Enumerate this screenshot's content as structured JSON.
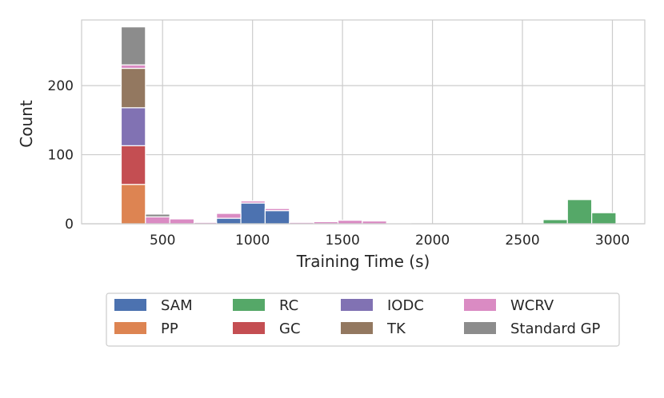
{
  "chart_data": {
    "type": "bar",
    "subtype": "stacked-histogram",
    "xlabel": "Training Time (s)",
    "ylabel": "Count",
    "xlim": [
      50,
      3180
    ],
    "ylim": [
      0,
      295
    ],
    "xticks": [
      500,
      1000,
      1500,
      2000,
      2500,
      3000
    ],
    "yticks": [
      0,
      100,
      200
    ],
    "grid": true,
    "legend_position": "bottom-center",
    "bin_width": 135,
    "series": [
      {
        "name": "SAM",
        "color": "#4c72b0",
        "bins": [
          {
            "x0": 800,
            "x1": 935,
            "y": 8
          },
          {
            "x0": 935,
            "x1": 1070,
            "y": 30
          },
          {
            "x0": 1070,
            "x1": 1205,
            "y": 19
          }
        ]
      },
      {
        "name": "PP",
        "color": "#dd8452",
        "bins": [
          {
            "x0": 270,
            "x1": 405,
            "y": 57
          }
        ]
      },
      {
        "name": "RC",
        "color": "#55a868",
        "bins": [
          {
            "x0": 2615,
            "x1": 2750,
            "y": 6
          },
          {
            "x0": 2750,
            "x1": 2885,
            "y": 35
          },
          {
            "x0": 2885,
            "x1": 3020,
            "y": 16
          }
        ]
      },
      {
        "name": "GC",
        "color": "#c44e52",
        "bins": [
          {
            "x0": 270,
            "x1": 405,
            "y": 56
          }
        ]
      },
      {
        "name": "IODC",
        "color": "#8172b3",
        "bins": [
          {
            "x0": 270,
            "x1": 405,
            "y": 55
          }
        ]
      },
      {
        "name": "TK",
        "color": "#937860",
        "bins": [
          {
            "x0": 270,
            "x1": 405,
            "y": 57
          }
        ]
      },
      {
        "name": "WCRV",
        "color": "#da8bc3",
        "bins": [
          {
            "x0": 270,
            "x1": 405,
            "y": 5
          },
          {
            "x0": 405,
            "x1": 540,
            "y": 10
          },
          {
            "x0": 540,
            "x1": 675,
            "y": 7
          },
          {
            "x0": 675,
            "x1": 800,
            "y": 2
          },
          {
            "x0": 800,
            "x1": 935,
            "y": 7
          },
          {
            "x0": 935,
            "x1": 1070,
            "y": 3
          },
          {
            "x0": 1070,
            "x1": 1205,
            "y": 3
          },
          {
            "x0": 1205,
            "x1": 1340,
            "y": 2
          },
          {
            "x0": 1340,
            "x1": 1475,
            "y": 3
          },
          {
            "x0": 1475,
            "x1": 1610,
            "y": 5
          },
          {
            "x0": 1610,
            "x1": 1745,
            "y": 4
          },
          {
            "x0": 1745,
            "x1": 1880,
            "y": 1
          }
        ]
      },
      {
        "name": "Standard GP",
        "color": "#8c8c8c",
        "bins": [
          {
            "x0": 270,
            "x1": 405,
            "y": 55
          },
          {
            "x0": 405,
            "x1": 540,
            "y": 4
          }
        ]
      }
    ]
  }
}
